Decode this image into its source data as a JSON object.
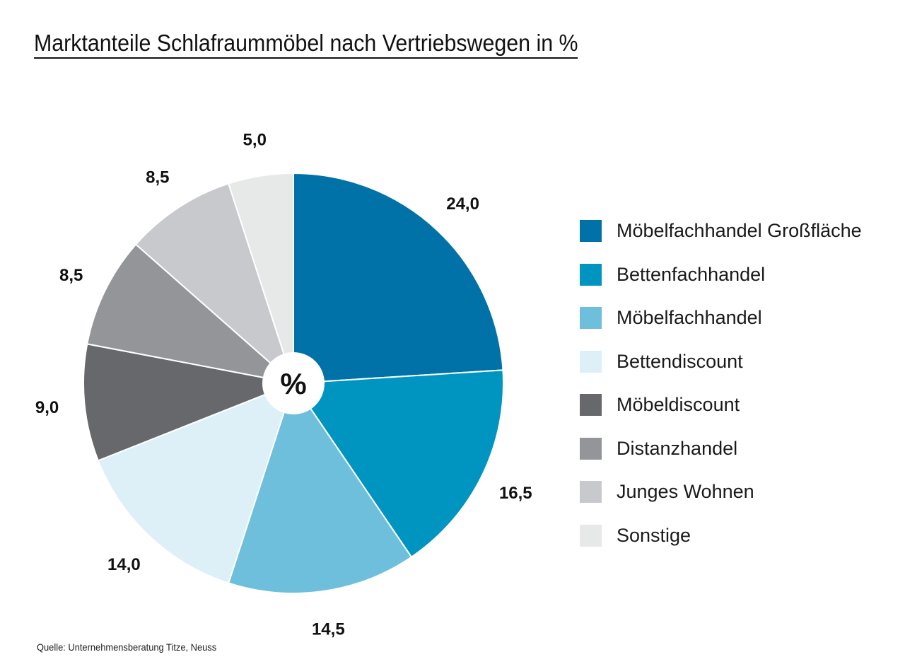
{
  "chart_data": {
    "type": "pie",
    "title": "Marktanteile Schlafraummöbel nach Vertriebswegen in %",
    "center_label": "%",
    "unit": "%",
    "start": "top",
    "direction": "clockwise",
    "legend_position": "right",
    "categories": [
      "Möbelfachhandel Großfläche",
      "Bettenfachhandel",
      "Möbelfachhandel",
      "Bettendiscount",
      "Möbeldiscount",
      "Distanzhandel",
      "Junges Wohnen",
      "Sonstige"
    ],
    "values": [
      24.0,
      16.5,
      14.5,
      14.0,
      9.0,
      8.5,
      8.5,
      5.0
    ],
    "value_labels": [
      "24,0",
      "16,5",
      "14,5",
      "14,0",
      "9,0",
      "8,5",
      "8,5",
      "5,0"
    ],
    "colors": [
      "#0072a8",
      "#0094c1",
      "#6ebfdc",
      "#ddeff7",
      "#67686c",
      "#949599",
      "#c8c9cd",
      "#e6e9e8"
    ]
  },
  "source": "Quelle: Unternehmensberatung Titze, Neuss"
}
